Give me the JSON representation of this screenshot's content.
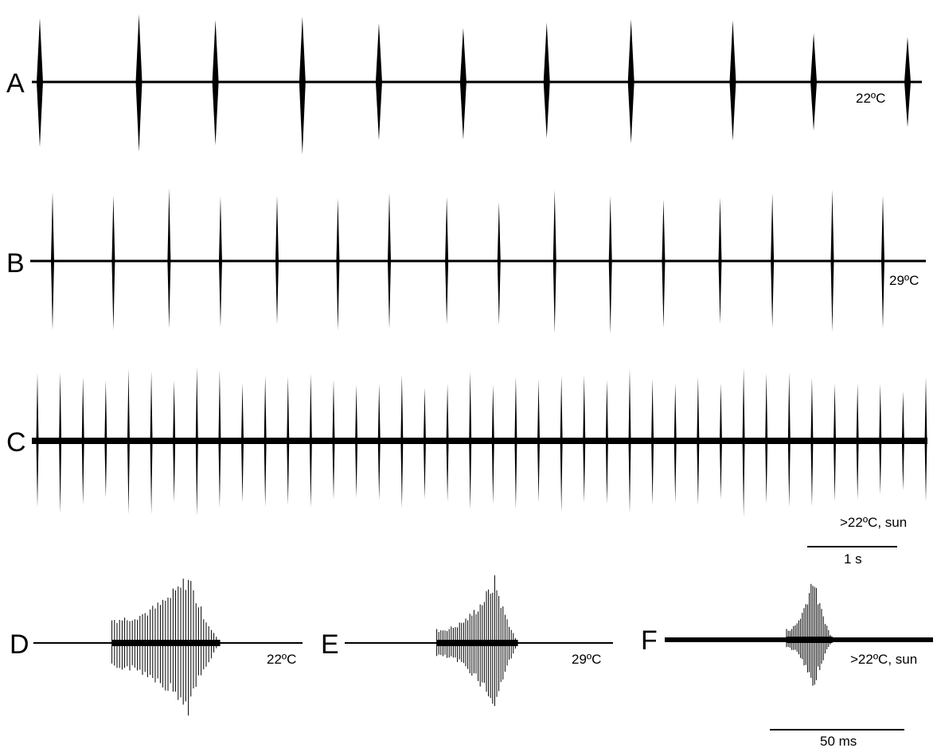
{
  "chart_data": [
    {
      "type": "line",
      "panel": "A",
      "annotation": "22ºC",
      "x_unit": "s",
      "pulse_times_s": [
        0.0,
        1.14,
        2.02,
        3.02,
        3.9,
        4.87,
        5.83,
        6.8,
        7.97,
        8.9,
        9.98
      ],
      "pulse_relative_amplitude": [
        0.9,
        1.0,
        0.88,
        0.97,
        0.82,
        0.78,
        0.82,
        0.88,
        0.85,
        0.68,
        0.66
      ]
    },
    {
      "type": "line",
      "panel": "B",
      "annotation": "29ºC",
      "x_unit": "s",
      "pulse_times_s": [
        0.0,
        0.71,
        1.36,
        1.96,
        2.62,
        3.33,
        3.93,
        4.6,
        5.21,
        5.86,
        6.51,
        7.13,
        7.79,
        8.4,
        9.1,
        9.69
      ],
      "pulse_relative_amplitude": [
        0.9,
        0.95,
        0.95,
        0.9,
        0.88,
        0.9,
        0.95,
        0.88,
        0.85,
        1.0,
        0.95,
        0.88,
        0.88,
        0.92,
        0.95,
        0.95
      ]
    },
    {
      "type": "line",
      "panel": "C",
      "annotation": ">22ºC, sun",
      "x_unit": "s",
      "pulse_interval_s": 0.28,
      "pulse_count": 40,
      "pulse_relative_amplitude": [
        0.9,
        0.95,
        0.82,
        0.75,
        0.95,
        0.92,
        0.8,
        1.0,
        0.9,
        0.78,
        0.82,
        0.8,
        0.85,
        0.8,
        0.75,
        0.78,
        0.85,
        0.72,
        0.8,
        0.9,
        0.78,
        0.85,
        0.8,
        0.9,
        0.82,
        0.85,
        0.92,
        0.8,
        0.78,
        0.88,
        0.8,
        0.95,
        0.85,
        0.9,
        0.85,
        0.8,
        0.78,
        0.72,
        0.68,
        0.82
      ]
    },
    {
      "type": "line",
      "panel": "D",
      "annotation": "22ºC",
      "x_unit": "ms",
      "pulse_duration_ms": 40,
      "pulse_onset_ms": 29,
      "pulse_peak_ms": 58
    },
    {
      "type": "line",
      "panel": "E",
      "annotation": "29ºC",
      "x_unit": "ms",
      "pulse_duration_ms": 30,
      "pulse_onset_ms": 34,
      "pulse_peak_ms": 56
    },
    {
      "type": "line",
      "panel": "F",
      "annotation": ">22ºC, sun",
      "x_unit": "ms",
      "pulse_duration_ms": 17,
      "pulse_onset_ms": 45,
      "pulse_peak_ms": 55
    }
  ],
  "scale_bars": {
    "time_long": "1 s",
    "time_short": "50 ms"
  }
}
